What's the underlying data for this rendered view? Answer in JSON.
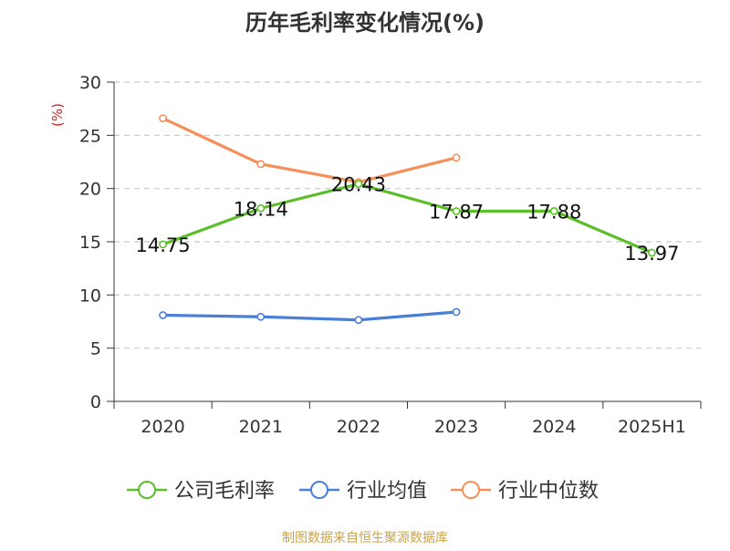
{
  "chart_data": {
    "type": "line",
    "title": "历年毛利率变化情况(%)",
    "ylabel": "(%)",
    "xlabel": "",
    "categories": [
      "2020",
      "2021",
      "2022",
      "2023",
      "2024",
      "2025H1"
    ],
    "ylim": [
      0,
      30
    ],
    "yticks": [
      0,
      5,
      10,
      15,
      20,
      25,
      30
    ],
    "grid": true,
    "legend_position": "bottom",
    "series": [
      {
        "name": "公司毛利率",
        "color": "#5cbf2a",
        "values": [
          14.75,
          18.14,
          20.43,
          17.87,
          17.88,
          13.97
        ],
        "labels": [
          "14.75",
          "18.14",
          "20.43",
          "17.87",
          "17.88",
          "13.97"
        ]
      },
      {
        "name": "行业均值",
        "color": "#4a7fd8",
        "values": [
          8.1,
          7.95,
          7.65,
          8.4,
          null,
          null
        ]
      },
      {
        "name": "行业中位数",
        "color": "#f5905a",
        "values": [
          26.6,
          22.3,
          20.6,
          22.9,
          null,
          null
        ]
      }
    ]
  },
  "source": "制图数据来自恒生聚源数据库"
}
